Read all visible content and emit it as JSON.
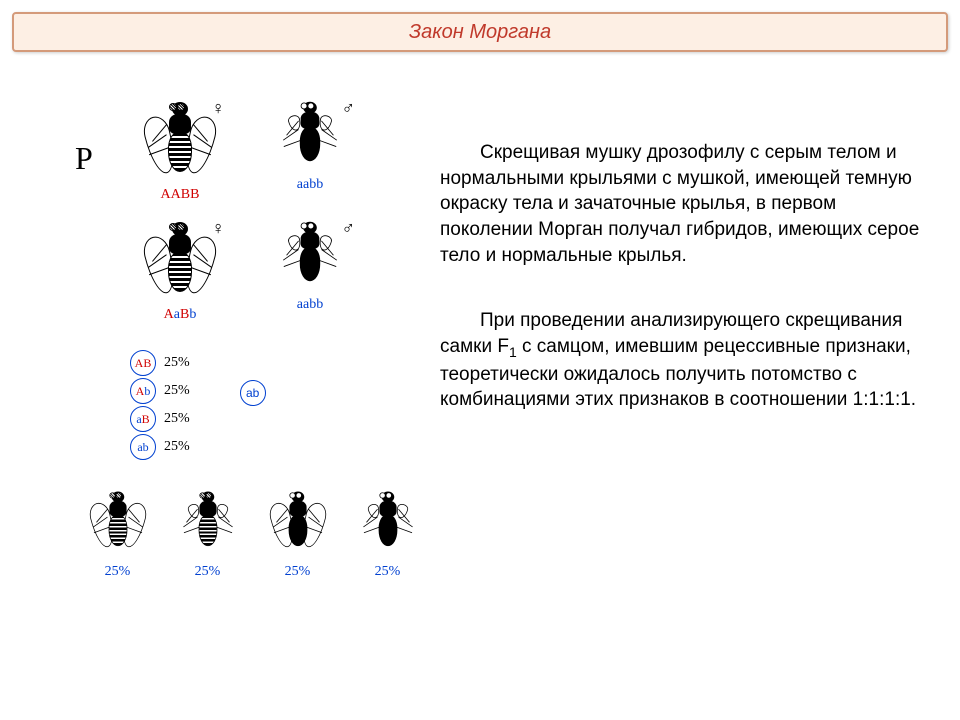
{
  "title": "Закон Моргана",
  "p_label": "P",
  "parents": {
    "female": {
      "genotype_html": "AABB",
      "sex": "♀",
      "color_allele": "red"
    },
    "male": {
      "genotype_html": "aabb",
      "sex": "♂",
      "color_allele": "blue"
    }
  },
  "f1_cross": {
    "female": {
      "genotype_letters": [
        "A",
        "a",
        "B",
        "b"
      ],
      "colors": [
        "red",
        "blue",
        "red",
        "blue"
      ],
      "sex": "♀"
    },
    "male": {
      "genotype_html": "aabb",
      "sex": "♂",
      "color_allele": "blue"
    }
  },
  "gametes_female": [
    {
      "letters": [
        "A",
        "B"
      ],
      "colors": [
        "red",
        "red"
      ],
      "pct": "25%"
    },
    {
      "letters": [
        "A",
        "b"
      ],
      "colors": [
        "red",
        "blue"
      ],
      "pct": "25%"
    },
    {
      "letters": [
        "a",
        "B"
      ],
      "colors": [
        "blue",
        "red"
      ],
      "pct": "25%"
    },
    {
      "letters": [
        "a",
        "b"
      ],
      "colors": [
        "blue",
        "blue"
      ],
      "pct": "25%"
    }
  ],
  "gamete_male": {
    "letters": [
      "a",
      "b"
    ],
    "colors": [
      "blue",
      "blue"
    ]
  },
  "offspring_pct": [
    "25%",
    "25%",
    "25%",
    "25%"
  ],
  "paragraph1": "Скрещивая мушку дрозофилу с серым телом и нормальными крыльями с мушкой, имеющей темную окраску тела и зачаточные крылья, в первом поколении Морган получал гибридов, имеющих серое тело и нормальные крылья.",
  "paragraph2_pre": "При проведении анализирующего скрещивания самки F",
  "paragraph2_sub": "1",
  "paragraph2_post": " с самцом, имевшим рецессивные признаки, теоретически ожидалось получить потомство с комбинациями этих признаков в соотношении 1:1:1:1.",
  "colors": {
    "title_bg": "#fdefe4",
    "title_border": "#d49a7a",
    "title_text": "#c0392b",
    "red": "#d00000",
    "blue": "#0040d0",
    "text": "#000000",
    "bg": "#ffffff"
  },
  "fontsize": {
    "title": 20,
    "body": 19,
    "genotype": 14,
    "p_label": 32
  }
}
